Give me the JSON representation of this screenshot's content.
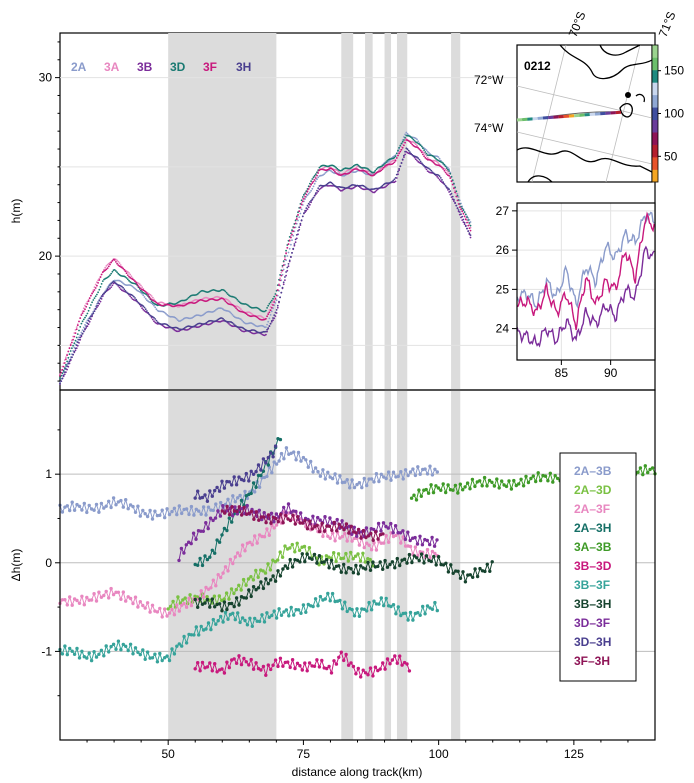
{
  "chart_data": [
    {
      "type": "scatter",
      "panel": "top-elevation",
      "ylabel": "h(m)",
      "xlim": [
        30,
        140
      ],
      "ylim": [
        12.5,
        32.5
      ],
      "yticks": [
        20,
        30
      ],
      "grid": true,
      "legend_placement": "top-left",
      "shaded_x_ranges": [
        [
          50,
          70
        ],
        [
          82,
          84.2
        ],
        [
          86.4,
          87.8
        ],
        [
          90,
          91.2
        ],
        [
          92.3,
          94.2
        ],
        [
          102.3,
          104
        ]
      ],
      "series": [
        {
          "name": "2A",
          "color": "#8a9bcb",
          "x": [
            30,
            34,
            38,
            40,
            44,
            48,
            52,
            56,
            60,
            64,
            68,
            70,
            72,
            75,
            78,
            80,
            82,
            85,
            88,
            90,
            92,
            94,
            96,
            98,
            100,
            102,
            104,
            106
          ],
          "y": [
            13.0,
            15.8,
            17.9,
            18.7,
            18.2,
            17.0,
            16.4,
            16.7,
            17.1,
            16.3,
            16.0,
            17.5,
            20.0,
            23.0,
            24.5,
            24.8,
            24.5,
            24.8,
            24.5,
            25.2,
            25.6,
            26.9,
            26.5,
            25.8,
            25.5,
            24.8,
            23.0,
            21.8
          ]
        },
        {
          "name": "3A",
          "color": "#e887c0",
          "x": [
            30,
            34,
            38,
            40,
            44,
            48,
            52,
            56,
            60,
            64,
            68,
            70,
            72,
            75,
            78,
            80,
            82,
            85,
            88,
            90,
            92,
            94,
            96,
            98,
            100,
            102,
            104,
            106
          ],
          "y": [
            13.4,
            16.8,
            19.2,
            19.9,
            18.6,
            17.4,
            17.2,
            17.6,
            17.7,
            16.9,
            16.5,
            17.8,
            20.5,
            23.3,
            24.9,
            25.0,
            24.6,
            25.0,
            24.6,
            25.0,
            25.4,
            26.6,
            26.2,
            25.5,
            25.2,
            24.6,
            22.8,
            21.5
          ]
        },
        {
          "name": "3B",
          "color": "#7b2d9a",
          "x": [
            30,
            34,
            38,
            40,
            44,
            48,
            52,
            56,
            60,
            64,
            68,
            70,
            72,
            75,
            78,
            80,
            82,
            85,
            88,
            90,
            92,
            94,
            96,
            98,
            100,
            102,
            104,
            106
          ],
          "y": [
            12.8,
            15.5,
            17.8,
            18.5,
            17.5,
            16.2,
            15.8,
            16.1,
            16.4,
            15.8,
            15.6,
            16.8,
            19.2,
            22.3,
            23.8,
            24.0,
            23.7,
            23.9,
            23.6,
            23.9,
            24.2,
            25.9,
            25.4,
            24.8,
            24.4,
            23.6,
            22.3,
            21.0
          ]
        },
        {
          "name": "3D",
          "color": "#1a7a72",
          "x": [
            30,
            34,
            38,
            40,
            44,
            48,
            52,
            56,
            60,
            64,
            68,
            70,
            72,
            75,
            78,
            80,
            82,
            85,
            88,
            90,
            92,
            94,
            96,
            98,
            100,
            102,
            104,
            106
          ],
          "y": [
            13.1,
            16.2,
            18.6,
            19.2,
            18.4,
            17.2,
            17.4,
            18.0,
            18.1,
            17.3,
            16.9,
            18.0,
            20.6,
            23.4,
            25.0,
            25.1,
            24.8,
            25.1,
            24.7,
            25.2,
            25.6,
            26.8,
            26.4,
            25.7,
            25.4,
            24.8,
            22.9,
            21.7
          ]
        },
        {
          "name": "3F",
          "color": "#c8197d",
          "x": [
            30,
            34,
            38,
            40,
            44,
            48,
            52,
            56,
            60,
            64,
            68,
            70,
            72,
            75,
            78,
            80,
            82,
            85,
            88,
            90,
            92,
            94,
            96,
            98,
            100,
            102,
            104,
            106
          ],
          "y": [
            13.3,
            16.7,
            19.1,
            19.8,
            18.5,
            17.3,
            17.2,
            17.5,
            17.6,
            16.8,
            16.4,
            17.7,
            20.4,
            23.2,
            24.8,
            24.9,
            24.5,
            24.9,
            24.5,
            25.0,
            25.3,
            26.5,
            26.1,
            25.4,
            25.1,
            24.5,
            22.7,
            21.4
          ]
        },
        {
          "name": "3H",
          "color": "#4a3f8f",
          "x": [
            30,
            34,
            38,
            40,
            44,
            48,
            52,
            56,
            60,
            64,
            68,
            70,
            72,
            75,
            78,
            80,
            82,
            85,
            88,
            90,
            92,
            94,
            96,
            98,
            100,
            102,
            104,
            106
          ],
          "y": [
            12.9,
            15.6,
            17.9,
            18.6,
            17.6,
            16.3,
            15.9,
            16.2,
            16.5,
            15.9,
            15.7,
            16.9,
            19.3,
            22.4,
            23.9,
            24.1,
            23.8,
            24.0,
            23.7,
            24.0,
            24.3,
            26.0,
            25.5,
            24.9,
            24.5,
            23.7,
            22.4,
            21.1
          ]
        }
      ]
    },
    {
      "type": "line",
      "panel": "inset-zoom",
      "xlim": [
        80.5,
        94.5
      ],
      "ylim": [
        23.2,
        27.2
      ],
      "xticks": [
        85,
        90
      ],
      "yticks": [
        24,
        25,
        26,
        27
      ],
      "grid": true,
      "series": [
        {
          "color": "#8a9bcb",
          "x": [
            80.5,
            81.5,
            82.5,
            83.5,
            84.5,
            85.5,
            86.5,
            87.5,
            88.5,
            89.5,
            90.5,
            91.5,
            92.5,
            93.5,
            94.5
          ],
          "y": [
            24.8,
            24.9,
            24.6,
            25.2,
            24.8,
            25.5,
            24.6,
            25.6,
            25.2,
            26.1,
            25.8,
            26.4,
            26.2,
            26.9,
            26.8
          ]
        },
        {
          "color": "#c8197d",
          "x": [
            80.5,
            81.5,
            82.5,
            83.5,
            84.5,
            85.5,
            86.5,
            87.5,
            88.5,
            89.5,
            90.5,
            91.5,
            92.5,
            93.5,
            94.5
          ],
          "y": [
            24.6,
            24.7,
            24.4,
            25.0,
            24.4,
            24.9,
            24.1,
            25.3,
            24.6,
            25.2,
            25.0,
            26.0,
            25.3,
            26.8,
            26.6
          ]
        },
        {
          "color": "#7b2d9a",
          "x": [
            80.5,
            81.5,
            82.5,
            83.5,
            84.5,
            85.5,
            86.5,
            87.5,
            88.5,
            89.5,
            90.5,
            91.5,
            92.5,
            93.5,
            94.5
          ],
          "y": [
            23.9,
            23.8,
            23.6,
            24.0,
            23.7,
            24.2,
            23.7,
            24.4,
            24.1,
            24.6,
            24.3,
            25.0,
            24.8,
            26.0,
            25.8
          ]
        }
      ]
    },
    {
      "type": "scatter",
      "panel": "bottom-difference",
      "xlabel": "distance along track(km)",
      "ylabel": "Δh(m)",
      "xlim": [
        30,
        140
      ],
      "ylim": [
        -2.0,
        1.95
      ],
      "xticks": [
        50,
        75,
        100,
        125
      ],
      "yticks": [
        -1,
        0,
        1
      ],
      "grid": true,
      "legend_placement": "right",
      "series": [
        {
          "name": "2A–3B",
          "color": "#8a9bcb",
          "x": [
            30,
            35,
            40,
            45,
            50,
            55,
            60,
            65,
            70,
            72,
            75,
            78,
            80,
            85,
            90,
            95,
            100
          ],
          "y": [
            0.6,
            0.62,
            0.68,
            0.58,
            0.55,
            0.6,
            0.62,
            0.8,
            1.1,
            1.25,
            1.2,
            1.0,
            0.95,
            0.9,
            0.95,
            1.05,
            1.0
          ]
        },
        {
          "name": "2A–3D",
          "color": "#7ac143",
          "x": [
            50,
            52,
            55,
            58,
            60,
            62,
            65,
            68,
            70,
            72,
            75,
            78,
            80,
            85,
            88
          ],
          "y": [
            -0.5,
            -0.4,
            -0.4,
            -0.45,
            -0.4,
            -0.3,
            -0.2,
            -0.1,
            0.05,
            0.2,
            0.15,
            0.0,
            0.1,
            0.05,
            0.0
          ]
        },
        {
          "name": "2A–3F",
          "color": "#e887c0",
          "x": [
            30,
            35,
            40,
            45,
            50,
            55,
            60,
            65,
            68,
            72,
            75,
            78,
            80,
            85,
            88,
            92,
            95,
            100
          ],
          "y": [
            -0.4,
            -0.45,
            -0.3,
            -0.5,
            -0.55,
            -0.45,
            -0.1,
            0.2,
            0.35,
            0.55,
            0.45,
            0.4,
            0.3,
            0.25,
            0.2,
            0.3,
            0.15,
            0.1
          ]
        },
        {
          "name": "2A–3H",
          "color": "#156f66",
          "x": [
            55,
            58,
            60,
            62,
            65,
            68,
            70,
            71
          ],
          "y": [
            0.0,
            0.1,
            0.3,
            0.5,
            0.8,
            1.1,
            1.3,
            1.45
          ]
        },
        {
          "name": "3A–3B",
          "color": "#3e9a27",
          "x": [
            95,
            97,
            100,
            103,
            106,
            110,
            115,
            120,
            125,
            130,
            135,
            140
          ],
          "y": [
            0.75,
            0.8,
            0.82,
            0.85,
            0.9,
            0.88,
            0.92,
            0.95,
            1.0,
            1.02,
            0.98,
            1.05
          ]
        },
        {
          "name": "3B–3D",
          "color": "#c8197d",
          "x": [
            55,
            58,
            60,
            62,
            65,
            68,
            70,
            72,
            75,
            78,
            80,
            82,
            85,
            88,
            92,
            95
          ],
          "y": [
            -1.2,
            -1.15,
            -1.2,
            -1.1,
            -1.15,
            -1.2,
            -1.1,
            -1.15,
            -1.2,
            -1.1,
            -1.2,
            -1.05,
            -1.25,
            -1.2,
            -1.1,
            -1.2
          ]
        },
        {
          "name": "3B–3F",
          "color": "#36a39a",
          "x": [
            30,
            35,
            40,
            45,
            50,
            52,
            55,
            58,
            60,
            62,
            65,
            70,
            75,
            80,
            85,
            90,
            95,
            100
          ],
          "y": [
            -1.0,
            -1.05,
            -0.95,
            -1.0,
            -1.1,
            -0.95,
            -0.75,
            -0.7,
            -0.65,
            -0.6,
            -0.65,
            -0.6,
            -0.5,
            -0.4,
            -0.55,
            -0.45,
            -0.6,
            -0.5
          ]
        },
        {
          "name": "3B–3H",
          "color": "#16432e",
          "x": [
            55,
            60,
            65,
            68,
            70,
            72,
            75,
            80,
            85,
            90,
            100,
            105,
            110
          ],
          "y": [
            -0.45,
            -0.5,
            -0.35,
            -0.25,
            -0.15,
            0.0,
            0.05,
            0.0,
            -0.1,
            0.0,
            0.05,
            -0.2,
            0.0
          ]
        },
        {
          "name": "3D–3F",
          "color": "#7b2d9a",
          "x": [
            52,
            55,
            58,
            60,
            62,
            65,
            68,
            70,
            72,
            75,
            78,
            80,
            85,
            90,
            95,
            100
          ],
          "y": [
            0.05,
            0.3,
            0.5,
            0.6,
            0.55,
            0.6,
            0.55,
            0.5,
            0.6,
            0.5,
            0.5,
            0.45,
            0.35,
            0.4,
            0.3,
            0.2
          ]
        },
        {
          "name": "3D–3H",
          "color": "#4a3f8f",
          "x": [
            55,
            57,
            60,
            62,
            65,
            68,
            70
          ],
          "y": [
            0.8,
            0.75,
            0.85,
            0.9,
            1.0,
            1.15,
            1.25
          ]
        },
        {
          "name": "3F–3H",
          "color": "#8e1456",
          "x": [
            60,
            65,
            70,
            75,
            80,
            85,
            90
          ],
          "y": [
            0.6,
            0.55,
            0.5,
            0.45,
            0.4,
            0.35,
            0.3
          ]
        }
      ]
    },
    {
      "type": "other",
      "panel": "map-inset",
      "label": "0212",
      "lat_labels": [
        "70°S",
        "71°S"
      ],
      "lon_labels": [
        "72°W",
        "74°W"
      ],
      "colorbar_ticks": [
        50,
        100,
        150
      ],
      "colorbar_colors": [
        "#f5a623",
        "#e8522a",
        "#b51f2e",
        "#8e1456",
        "#6a3d9a",
        "#3f4fa0",
        "#8fa8d4",
        "#c9d7ee",
        "#1f8a80",
        "#6bbf6b",
        "#9bd38f"
      ]
    }
  ]
}
